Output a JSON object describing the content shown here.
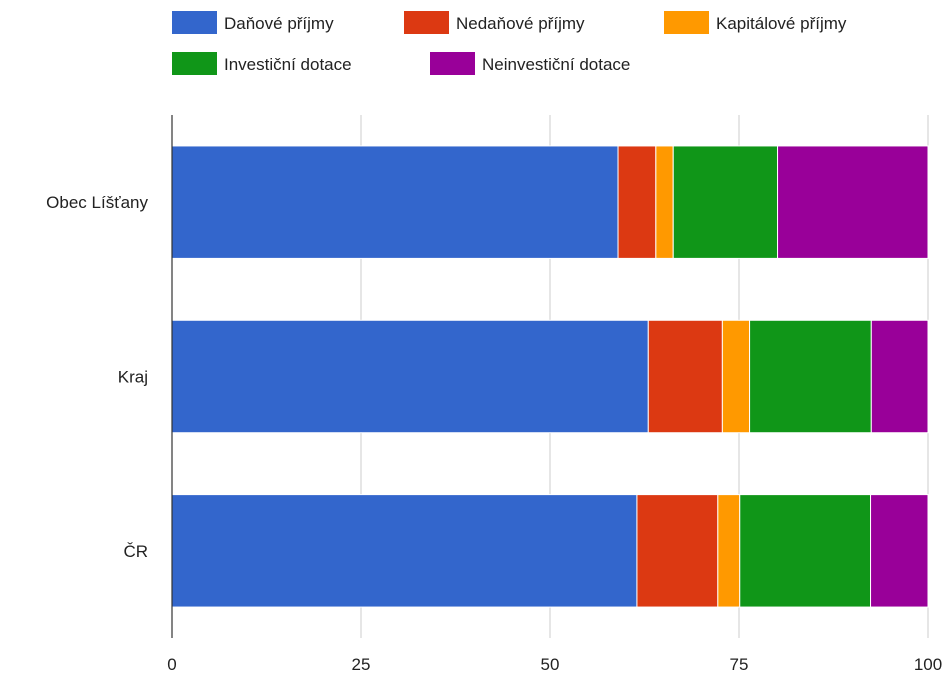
{
  "chart_data": {
    "type": "bar",
    "orientation": "horizontal",
    "stacked": true,
    "categories": [
      "Obec Líšťany",
      "Kraj",
      "ČR"
    ],
    "series": [
      {
        "name": "Daňové příjmy",
        "color": "#3366cc",
        "values": [
          59.0,
          63.0,
          61.5
        ]
      },
      {
        "name": "Nedaňové příjmy",
        "color": "#dc3912",
        "values": [
          5.0,
          9.8,
          10.7
        ]
      },
      {
        "name": "Kapitálové příjmy",
        "color": "#ff9900",
        "values": [
          2.3,
          3.6,
          2.9
        ]
      },
      {
        "name": "Investiční dotace",
        "color": "#109618",
        "values": [
          13.8,
          16.1,
          17.3
        ]
      },
      {
        "name": "Neinvestiční dotace",
        "color": "#990099",
        "values": [
          19.9,
          7.5,
          7.6
        ]
      }
    ],
    "x_ticks": [
      "0",
      "25",
      "50",
      "75",
      "100"
    ],
    "xlim": [
      0,
      100
    ],
    "grid": true,
    "legend_position": "top"
  }
}
